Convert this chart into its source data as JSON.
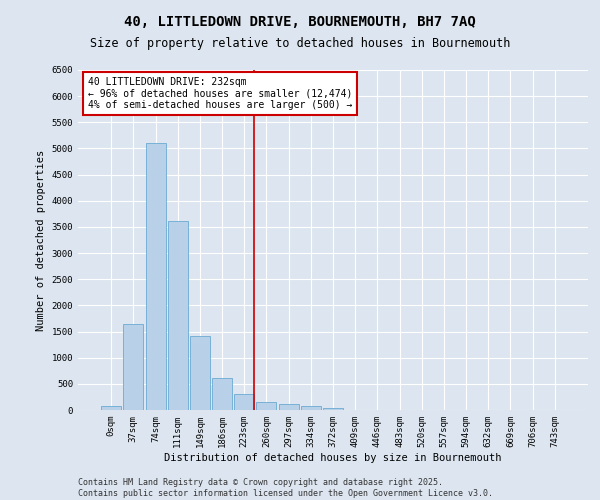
{
  "title": "40, LITTLEDOWN DRIVE, BOURNEMOUTH, BH7 7AQ",
  "subtitle": "Size of property relative to detached houses in Bournemouth",
  "xlabel": "Distribution of detached houses by size in Bournemouth",
  "ylabel": "Number of detached properties",
  "categories": [
    "0sqm",
    "37sqm",
    "74sqm",
    "111sqm",
    "149sqm",
    "186sqm",
    "223sqm",
    "260sqm",
    "297sqm",
    "334sqm",
    "372sqm",
    "409sqm",
    "446sqm",
    "483sqm",
    "520sqm",
    "557sqm",
    "594sqm",
    "632sqm",
    "669sqm",
    "706sqm",
    "743sqm"
  ],
  "bar_values": [
    75,
    1650,
    5100,
    3620,
    1420,
    610,
    310,
    155,
    110,
    80,
    35,
    5,
    0,
    0,
    0,
    0,
    0,
    0,
    0,
    0,
    0
  ],
  "bar_color": "#b8d0e8",
  "bar_edge_color": "#6aaad4",
  "vline_x_index": 6,
  "vline_color": "#cc0000",
  "annotation_title": "40 LITTLEDOWN DRIVE: 232sqm",
  "annotation_line1": "← 96% of detached houses are smaller (12,474)",
  "annotation_line2": "4% of semi-detached houses are larger (500) →",
  "annotation_box_color": "#cc0000",
  "ylim": [
    0,
    6500
  ],
  "yticks": [
    0,
    500,
    1000,
    1500,
    2000,
    2500,
    3000,
    3500,
    4000,
    4500,
    5000,
    5500,
    6000,
    6500
  ],
  "bg_color": "#dde6f0",
  "plot_bg_color": "#dde6f0",
  "footnote1": "Contains HM Land Registry data © Crown copyright and database right 2025.",
  "footnote2": "Contains public sector information licensed under the Open Government Licence v3.0.",
  "title_fontsize": 10,
  "subtitle_fontsize": 8.5,
  "axis_label_fontsize": 7.5,
  "tick_fontsize": 6.5,
  "annotation_fontsize": 7,
  "footnote_fontsize": 6
}
